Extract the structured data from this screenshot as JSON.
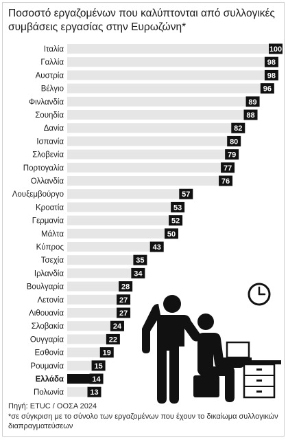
{
  "title": "Ποσοστό εργαζομένων που καλύπτονται από συλλογικές συμβάσεις εργασίας στην Ευρωζώνη*",
  "source": "Πηγή: ETUC / ΟΟΣΑ 2024",
  "footnote": "*σε σύγκριση με το σύνολο των εργαζομένων που έχουν το δικαίωμα συλλογικών διαπραγματεύσεων",
  "colors": {
    "bar": "#e6e6e6",
    "highlight_bar": "#111111",
    "label_box": "#111111",
    "label_text": "#ffffff",
    "category_text": "#1a1a1a"
  },
  "chart_data": {
    "type": "bar",
    "orientation": "horizontal",
    "title": "Ποσοστό εργαζομένων που καλύπτονται από συλλογικές συμβάσεις εργασίας στην Ευρωζώνη*",
    "xlim": [
      0,
      100
    ],
    "grid": false,
    "highlight": "Ελλάδα",
    "categories": [
      "Ιταλία",
      "Γαλλία",
      "Αυστρία",
      "Βέλγιο",
      "Φινλανδία",
      "Σουηδία",
      "Δανία",
      "Ισπανία",
      "Σλοβενία",
      "Πορτογαλία",
      "Ολλανδία",
      "Λουξεμβούργο",
      "Κροατία",
      "Γερμανία",
      "Μάλτα",
      "Κύπρος",
      "Τσεχία",
      "Ιρλανδία",
      "Βουλγαρία",
      "Λετονία",
      "Λιθουανία",
      "Σλοβακία",
      "Ουγγαρία",
      "Εσθονία",
      "Ρουμανία",
      "Ελλάδα",
      "Πολωνία"
    ],
    "values": [
      100,
      98,
      98,
      96,
      89,
      88,
      82,
      80,
      79,
      77,
      76,
      57,
      53,
      52,
      50,
      43,
      35,
      34,
      28,
      27,
      27,
      24,
      22,
      19,
      15,
      14,
      13
    ]
  },
  "illustration": {
    "icons": [
      "clock-icon",
      "office-workers-icon",
      "laptop-icon",
      "desk-drawers-icon"
    ]
  }
}
